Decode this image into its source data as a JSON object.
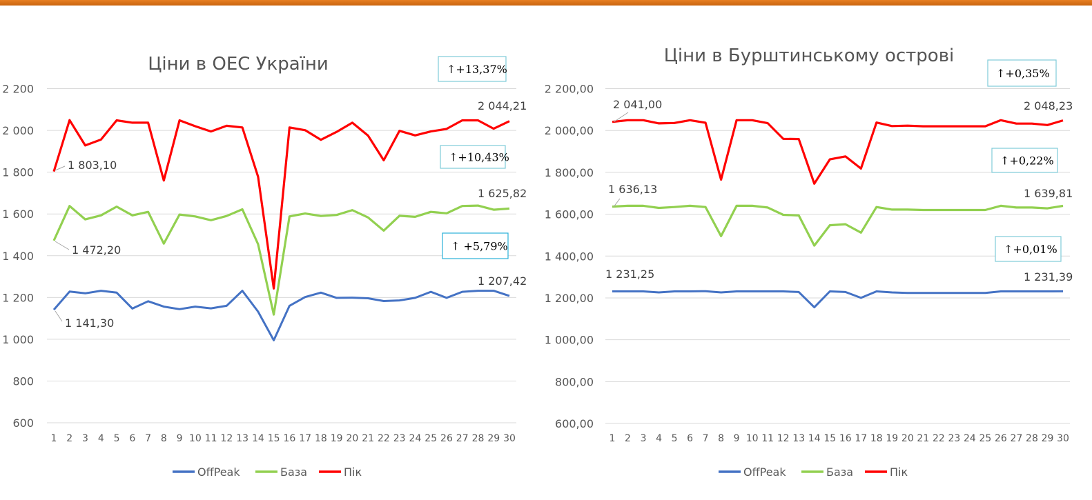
{
  "chart_data": [
    {
      "type": "line",
      "title": "Ціни в ОЕС України",
      "x": [
        1,
        2,
        3,
        4,
        5,
        6,
        7,
        8,
        9,
        10,
        11,
        12,
        13,
        14,
        15,
        16,
        17,
        18,
        19,
        20,
        21,
        22,
        23,
        24,
        25,
        26,
        27,
        28,
        29,
        30
      ],
      "ylim": [
        600,
        2200
      ],
      "yticks": [
        600,
        800,
        1000,
        1200,
        1400,
        1600,
        1800,
        2000,
        2200
      ],
      "ytick_labels": [
        "600",
        "800",
        "1 000",
        "1 200",
        "1 400",
        "1 600",
        "1 800",
        "2 000",
        "2 200"
      ],
      "grid": true,
      "legend_position": "bottom",
      "series": [
        {
          "name": "OffPeak",
          "color": "#4472c4",
          "values": [
            1141.3,
            1228,
            1220,
            1232,
            1223,
            1147,
            1182,
            1156,
            1144,
            1156,
            1148,
            1160,
            1232,
            1132,
            995,
            1160,
            1202,
            1223,
            1198,
            1199,
            1196,
            1183,
            1186,
            1198,
            1227,
            1198,
            1227,
            1232,
            1232,
            1207.42
          ]
        },
        {
          "name": "База",
          "color": "#92d050",
          "values": [
            1472.2,
            1638,
            1574,
            1593,
            1635,
            1593,
            1610,
            1458,
            1597,
            1588,
            1570,
            1590,
            1622,
            1455,
            1118,
            1588,
            1602,
            1590,
            1595,
            1618,
            1583,
            1520,
            1591,
            1586,
            1610,
            1603,
            1638,
            1640,
            1620,
            1625.82
          ]
        },
        {
          "name": "Пік",
          "color": "#ff0000",
          "values": [
            1803.1,
            2049,
            1928,
            1956,
            2048,
            2037,
            2037,
            1760,
            2048,
            2020,
            1995,
            2022,
            2014,
            1778,
            1243,
            2014,
            2001,
            1955,
            1993,
            2037,
            1975,
            1857,
            1998,
            1976,
            1995,
            2007,
            2048,
            2048,
            2008,
            2044.21
          ]
        }
      ],
      "data_labels": [
        {
          "series": "Пік",
          "x": 1,
          "text": "1 803,10"
        },
        {
          "series": "Пік",
          "x": 30,
          "text": "2 044,21"
        },
        {
          "series": "База",
          "x": 1,
          "text": "1 472,20"
        },
        {
          "series": "База",
          "x": 30,
          "text": "1 625,82"
        },
        {
          "series": "OffPeak",
          "x": 1,
          "text": "1 141,30"
        },
        {
          "series": "OffPeak",
          "x": 30,
          "text": "1 207,42"
        }
      ],
      "annotations": [
        "↑+13,37%",
        "↑+10,43%",
        "↑ +5,79%"
      ]
    },
    {
      "type": "line",
      "title": "Ціни в Бурштинському острові",
      "x": [
        1,
        2,
        3,
        4,
        5,
        6,
        7,
        8,
        9,
        10,
        11,
        12,
        13,
        14,
        15,
        16,
        17,
        18,
        19,
        20,
        21,
        22,
        23,
        24,
        25,
        26,
        27,
        28,
        29,
        30
      ],
      "ylim": [
        600,
        2200
      ],
      "yticks": [
        600,
        800,
        1000,
        1200,
        1400,
        1600,
        1800,
        2000,
        2200
      ],
      "ytick_labels": [
        "600,00",
        "800,00",
        "1 000,00",
        "1 200,00",
        "1 400,00",
        "1 600,00",
        "1 800,00",
        "2 000,00",
        "2 200,00"
      ],
      "grid": true,
      "legend_position": "bottom",
      "series": [
        {
          "name": "OffPeak",
          "color": "#4472c4",
          "values": [
            1231.25,
            1231,
            1231,
            1226,
            1231,
            1231,
            1232,
            1226,
            1231,
            1231,
            1231,
            1231,
            1228,
            1155,
            1231,
            1228,
            1200,
            1231,
            1226,
            1224,
            1224,
            1224,
            1224,
            1224,
            1224,
            1231,
            1231,
            1231,
            1231,
            1231.39
          ]
        },
        {
          "name": "База",
          "color": "#92d050",
          "values": [
            1636.13,
            1640,
            1640,
            1630,
            1634,
            1640,
            1634,
            1495,
            1640,
            1640,
            1632,
            1597,
            1594,
            1450,
            1547,
            1552,
            1512,
            1634,
            1622,
            1622,
            1620,
            1620,
            1620,
            1620,
            1620,
            1640,
            1632,
            1632,
            1628,
            1639.81
          ]
        },
        {
          "name": "Пік",
          "color": "#ff0000",
          "values": [
            2041.0,
            2049,
            2049,
            2034,
            2036,
            2049,
            2037,
            1765,
            2049,
            2049,
            2035,
            1960,
            1959,
            1746,
            1862,
            1876,
            1818,
            2038,
            2021,
            2023,
            2020,
            2020,
            2020,
            2020,
            2020,
            2049,
            2033,
            2033,
            2026,
            2048.23
          ]
        }
      ],
      "data_labels": [
        {
          "series": "Пік",
          "x": 1,
          "text": "2 041,00"
        },
        {
          "series": "Пік",
          "x": 30,
          "text": "2 048,23"
        },
        {
          "series": "База",
          "x": 1,
          "text": "1 636,13"
        },
        {
          "series": "База",
          "x": 30,
          "text": "1 639,81"
        },
        {
          "series": "OffPeak",
          "x": 1,
          "text": "1 231,25"
        },
        {
          "series": "OffPeak",
          "x": 30,
          "text": "1 231,39"
        }
      ],
      "annotations": [
        "↑+0,35%",
        "↑+0,22%",
        "↑+0,01%"
      ]
    }
  ]
}
